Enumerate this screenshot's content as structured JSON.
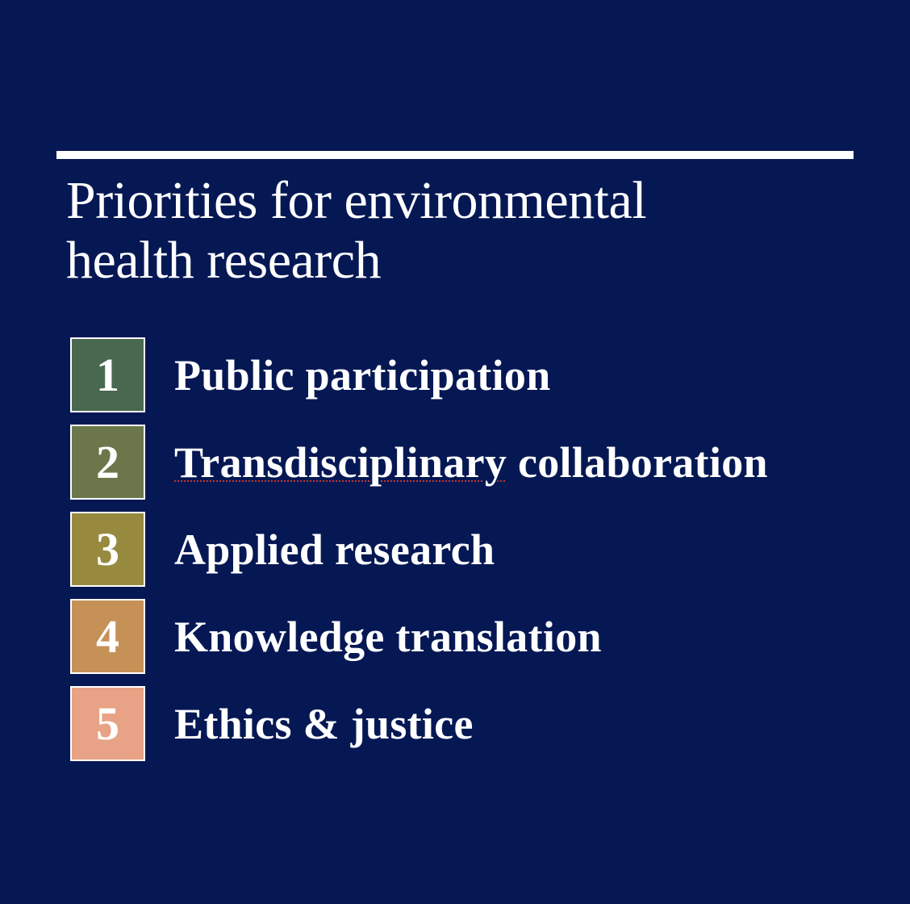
{
  "title": {
    "line1": "Priorities for environmental",
    "line2": "health research"
  },
  "priorities": [
    {
      "number": "1",
      "label": "Public participation",
      "color": "#48684f"
    },
    {
      "number": "2",
      "label_word1": "Transdisciplinary",
      "label_rest": " collaboration",
      "color": "#6b774a"
    },
    {
      "number": "3",
      "label": "Applied research",
      "color": "#978a3f"
    },
    {
      "number": "4",
      "label": "Knowledge translation",
      "color": "#c69157"
    },
    {
      "number": "5",
      "label": "Ethics & justice",
      "color": "#e8a285"
    }
  ],
  "colors": {
    "background": "#061854",
    "text": "#ffffff"
  }
}
